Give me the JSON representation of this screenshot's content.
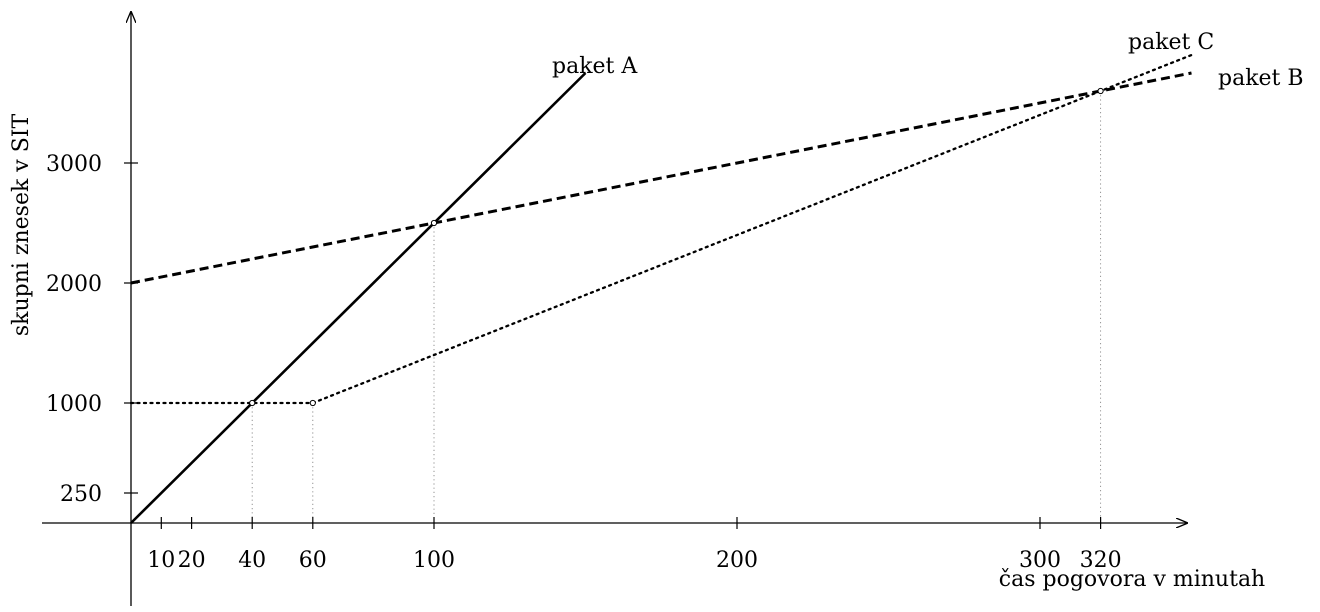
{
  "chart_data": {
    "type": "line",
    "xlabel": "čas pogovora v minutah",
    "ylabel": "skupni znesek v SIT",
    "xlim": [
      -30,
      350
    ],
    "ylim": [
      -250,
      4250
    ],
    "x_ticks": [
      10,
      20,
      40,
      60,
      100,
      200,
      300,
      320
    ],
    "y_ticks": [
      250,
      1000,
      2000,
      3000
    ],
    "series": [
      {
        "name": "paket A",
        "style": "solid",
        "color": "#000000",
        "x": [
          0,
          150
        ],
        "y": [
          0,
          3750
        ]
      },
      {
        "name": "paket B",
        "style": "dashed",
        "color": "#000000",
        "x": [
          0,
          350
        ],
        "y": [
          2000,
          3750
        ]
      },
      {
        "name": "paket C",
        "style": "dotted",
        "color": "#000000",
        "x": [
          0,
          60,
          350
        ],
        "y": [
          1000,
          1000,
          3900
        ]
      }
    ],
    "marked_points": [
      {
        "x": 40,
        "y": 1000
      },
      {
        "x": 60,
        "y": 1000
      },
      {
        "x": 100,
        "y": 2500
      },
      {
        "x": 320,
        "y": 3600
      }
    ],
    "grid": false,
    "legend": "none"
  }
}
